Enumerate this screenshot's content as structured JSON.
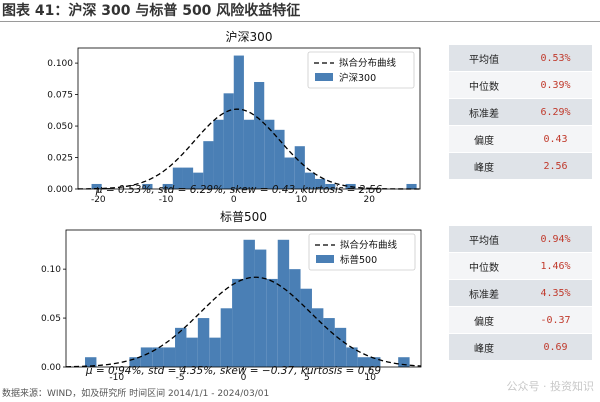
{
  "header": {
    "title": "图表 41：沪深 300 与标普 500 风险收益特征"
  },
  "footer": {
    "source": "数据来源：WIND，如及研究所 时间区间 2014/1/1 - 2024/03/01"
  },
  "watermark": {
    "text": "公众号 · 投资知识"
  },
  "legend_labels": {
    "fit": "拟合分布曲线"
  },
  "chart_data": [
    {
      "type": "bar",
      "title": "沪深300",
      "series": [
        {
          "name": "沪深300",
          "kind": "histogram",
          "bins": [
            {
              "x0": -21,
              "x1": -19.5,
              "y": 0.004
            },
            {
              "x0": -13.5,
              "x1": -12,
              "y": 0.004
            },
            {
              "x0": -10.5,
              "x1": -9,
              "y": 0.004
            },
            {
              "x0": -9,
              "x1": -7.5,
              "y": 0.017
            },
            {
              "x0": -7.5,
              "x1": -6,
              "y": 0.017
            },
            {
              "x0": -6,
              "x1": -4.5,
              "y": 0.013
            },
            {
              "x0": -4.5,
              "x1": -3,
              "y": 0.038
            },
            {
              "x0": -3,
              "x1": -1.5,
              "y": 0.055
            },
            {
              "x0": -1.5,
              "x1": 0,
              "y": 0.076
            },
            {
              "x0": 0,
              "x1": 1.5,
              "y": 0.106
            },
            {
              "x0": 1.5,
              "x1": 3,
              "y": 0.055
            },
            {
              "x0": 3,
              "x1": 4.5,
              "y": 0.085
            },
            {
              "x0": 4.5,
              "x1": 6,
              "y": 0.055
            },
            {
              "x0": 6,
              "x1": 7.5,
              "y": 0.047
            },
            {
              "x0": 7.5,
              "x1": 9,
              "y": 0.025
            },
            {
              "x0": 9,
              "x1": 10.5,
              "y": 0.034
            },
            {
              "x0": 10.5,
              "x1": 12,
              "y": 0.013
            },
            {
              "x0": 12,
              "x1": 13.5,
              "y": 0.008
            },
            {
              "x0": 13.5,
              "x1": 15,
              "y": 0.004
            },
            {
              "x0": 16.5,
              "x1": 18,
              "y": 0.004
            },
            {
              "x0": 25.5,
              "x1": 27,
              "y": 0.004
            }
          ]
        },
        {
          "name": "拟合分布曲线",
          "kind": "normal_fit",
          "mu": 0.53,
          "std": 6.29
        }
      ],
      "xlim": [
        -23,
        27.5
      ],
      "ylim": [
        0,
        0.112
      ],
      "xticks": [
        -20,
        -10,
        0,
        10,
        20
      ],
      "yticks": [
        0.0,
        0.025,
        0.05,
        0.075,
        0.1
      ],
      "ytick_labels": [
        "0.000",
        "0.025",
        "0.050",
        "0.075",
        "0.100"
      ],
      "caption": "μ = 0.53%,  std = 6.29%,  skew = 0.43,  kurtosis = 2.56",
      "legend_position": "top-right",
      "stats_table": [
        {
          "label": "平均值",
          "value": "0.53%"
        },
        {
          "label": "中位数",
          "value": "0.39%"
        },
        {
          "label": "标准差",
          "value": "6.29%"
        },
        {
          "label": "偏度",
          "value": "0.43"
        },
        {
          "label": "峰度",
          "value": "2.56"
        }
      ]
    },
    {
      "type": "bar",
      "title": "标普500",
      "series": [
        {
          "name": "标普500",
          "kind": "histogram",
          "bins": [
            {
              "x0": -12.5,
              "x1": -11.6,
              "y": 0.01
            },
            {
              "x0": -9.0,
              "x1": -8.1,
              "y": 0.01
            },
            {
              "x0": -8.1,
              "x1": -7.2,
              "y": 0.02
            },
            {
              "x0": -7.2,
              "x1": -6.3,
              "y": 0.02
            },
            {
              "x0": -6.3,
              "x1": -5.4,
              "y": 0.02
            },
            {
              "x0": -5.4,
              "x1": -4.5,
              "y": 0.04
            },
            {
              "x0": -4.5,
              "x1": -3.6,
              "y": 0.03
            },
            {
              "x0": -3.6,
              "x1": -2.7,
              "y": 0.05
            },
            {
              "x0": -2.7,
              "x1": -1.8,
              "y": 0.03
            },
            {
              "x0": -1.8,
              "x1": -0.9,
              "y": 0.06
            },
            {
              "x0": -0.9,
              "x1": 0.0,
              "y": 0.09
            },
            {
              "x0": 0.0,
              "x1": 0.9,
              "y": 0.13
            },
            {
              "x0": 0.9,
              "x1": 1.8,
              "y": 0.12
            },
            {
              "x0": 1.8,
              "x1": 2.7,
              "y": 0.09
            },
            {
              "x0": 2.7,
              "x1": 3.6,
              "y": 0.13
            },
            {
              "x0": 3.6,
              "x1": 4.5,
              "y": 0.1
            },
            {
              "x0": 4.5,
              "x1": 5.4,
              "y": 0.08
            },
            {
              "x0": 5.4,
              "x1": 6.3,
              "y": 0.06
            },
            {
              "x0": 6.3,
              "x1": 7.2,
              "y": 0.05
            },
            {
              "x0": 7.2,
              "x1": 8.1,
              "y": 0.04
            },
            {
              "x0": 8.1,
              "x1": 9.0,
              "y": 0.02
            },
            {
              "x0": 9.0,
              "x1": 9.9,
              "y": 0.01
            },
            {
              "x0": 9.9,
              "x1": 10.8,
              "y": 0.01
            },
            {
              "x0": 12.2,
              "x1": 13.1,
              "y": 0.01
            }
          ]
        },
        {
          "name": "拟合分布曲线",
          "kind": "normal_fit",
          "mu": 0.94,
          "std": 4.35
        }
      ],
      "xlim": [
        -14,
        14
      ],
      "ylim": [
        0,
        0.14
      ],
      "xticks": [
        -10,
        -5,
        0,
        5,
        10
      ],
      "yticks": [
        0.0,
        0.05,
        0.1
      ],
      "ytick_labels": [
        "0.00",
        "0.05",
        "0.10"
      ],
      "caption": "μ = 0.94%,  std = 4.35%,  skew = −0.37,  kurtosis = 0.69",
      "legend_position": "top-right",
      "stats_table": [
        {
          "label": "平均值",
          "value": "0.94%"
        },
        {
          "label": "中位数",
          "value": "1.46%"
        },
        {
          "label": "标准差",
          "value": "4.35%"
        },
        {
          "label": "偏度",
          "value": "-0.37"
        },
        {
          "label": "峰度",
          "value": "0.69"
        }
      ]
    }
  ],
  "colors": {
    "bar": "#4a7fb5",
    "curve": "#000000",
    "value_text": "#c0392b"
  }
}
